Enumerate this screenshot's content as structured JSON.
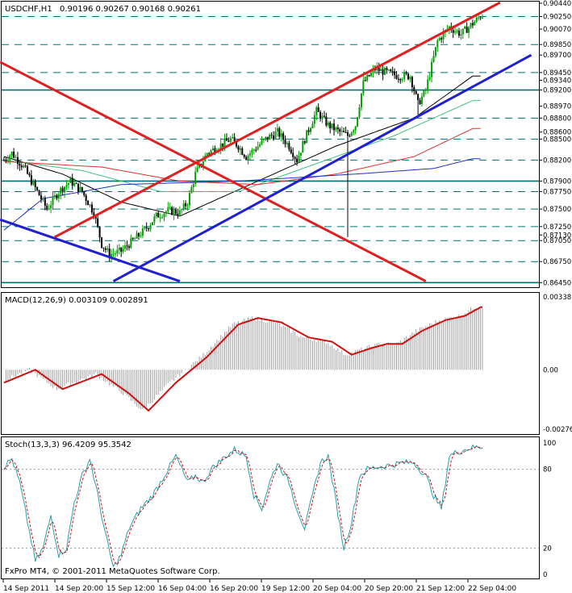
{
  "header": {
    "symbol": "USDCHF,H1",
    "ohlc": "0.90196 0.90267 0.90168 0.90261"
  },
  "colors": {
    "background": "#ffffff",
    "frame": "#000000",
    "bull_candle": "#00a000",
    "bear_candle": "#000000",
    "red_trendline": "#e02020",
    "blue_trendline": "#2020d0",
    "teal_level": "#007070",
    "macd_line": "#d01010",
    "macd_hist": "#a0a0a0",
    "stoch_main": "#20a0b0",
    "stoch_signal": "#d01010"
  },
  "chart_data": [
    {
      "type": "candlestick",
      "title": "USDCHF,H1",
      "subtitle": "0.90196 0.90267 0.90168 0.90261",
      "ylim": [
        0.8643,
        0.9044
      ],
      "price_axis_labels": [
        {
          "label": "0.90440",
          "value": 0.9044
        },
        {
          "label": "0.90250",
          "value": 0.9025
        },
        {
          "label": "0.90070",
          "value": 0.9007
        },
        {
          "label": "0.89850",
          "value": 0.8985
        },
        {
          "label": "0.89700",
          "value": 0.897
        },
        {
          "label": "0.89450",
          "value": 0.8945
        },
        {
          "label": "0.89340",
          "value": 0.8934
        },
        {
          "label": "0.89200",
          "value": 0.892
        },
        {
          "label": "0.88970",
          "value": 0.8897
        },
        {
          "label": "0.88800",
          "value": 0.888
        },
        {
          "label": "0.88600",
          "value": 0.886
        },
        {
          "label": "0.88500",
          "value": 0.885
        },
        {
          "label": "0.88200",
          "value": 0.882
        },
        {
          "label": "0.87900",
          "value": 0.879
        },
        {
          "label": "0.87750",
          "value": 0.8775
        },
        {
          "label": "0.87500",
          "value": 0.875
        },
        {
          "label": "0.87250",
          "value": 0.8725
        },
        {
          "label": "0.87130",
          "value": 0.8713
        },
        {
          "label": "0.87050",
          "value": 0.8705
        },
        {
          "label": "0.86750",
          "value": 0.8675
        },
        {
          "label": "0.86450",
          "value": 0.8645
        }
      ],
      "horizontal_levels": [
        0.9025,
        0.8985,
        0.8945,
        0.892,
        0.888,
        0.885,
        0.882,
        0.879,
        0.8775,
        0.875,
        0.8725,
        0.8705,
        0.8675,
        0.8645
      ],
      "solid_levels": [
        0.892,
        0.879,
        0.8645
      ],
      "time_labels": [
        "14 Sep 2011",
        "14 Sep 20:00",
        "15 Sep 12:00",
        "16 Sep 04:00",
        "16 Sep 20:00",
        "19 Sep 12:00",
        "20 Sep 04:00",
        "20 Sep 20:00",
        "21 Sep 12:00",
        "22 Sep 04:00"
      ],
      "close_keypoints": [
        [
          0,
          0.882
        ],
        [
          4,
          0.883
        ],
        [
          10,
          0.881
        ],
        [
          16,
          0.878
        ],
        [
          22,
          0.875
        ],
        [
          28,
          0.8775
        ],
        [
          34,
          0.879
        ],
        [
          40,
          0.8775
        ],
        [
          46,
          0.8745
        ],
        [
          50,
          0.87
        ],
        [
          54,
          0.8685
        ],
        [
          60,
          0.869
        ],
        [
          66,
          0.8705
        ],
        [
          72,
          0.872
        ],
        [
          78,
          0.874
        ],
        [
          84,
          0.8748
        ],
        [
          90,
          0.8745
        ],
        [
          94,
          0.876
        ],
        [
          98,
          0.88
        ],
        [
          104,
          0.883
        ],
        [
          110,
          0.884
        ],
        [
          116,
          0.885
        ],
        [
          120,
          0.884
        ],
        [
          124,
          0.8825
        ],
        [
          128,
          0.8835
        ],
        [
          134,
          0.885
        ],
        [
          140,
          0.886
        ],
        [
          146,
          0.884
        ],
        [
          150,
          0.882
        ],
        [
          154,
          0.885
        ],
        [
          160,
          0.889
        ],
        [
          166,
          0.887
        ],
        [
          172,
          0.886
        ],
        [
          176,
          0.8855
        ],
        [
          180,
          0.887
        ],
        [
          184,
          0.893
        ],
        [
          190,
          0.895
        ],
        [
          196,
          0.8945
        ],
        [
          202,
          0.894
        ],
        [
          208,
          0.894
        ],
        [
          212,
          0.89
        ],
        [
          216,
          0.892
        ],
        [
          222,
          0.899
        ],
        [
          228,
          0.901
        ],
        [
          234,
          0.9
        ],
        [
          240,
          0.9015
        ],
        [
          244,
          0.9026
        ]
      ],
      "spikes": [
        [
          176,
          0.871
        ],
        [
          212,
          0.8885
        ]
      ],
      "trendlines": [
        {
          "color": "red",
          "points": [
            [
              -2,
              0.896
            ],
            [
              216,
              0.8647
            ]
          ]
        },
        {
          "color": "red",
          "points": [
            [
              26,
              0.871
            ],
            [
              254,
              0.9045
            ]
          ]
        },
        {
          "color": "blue",
          "points": [
            [
              56,
              0.8647
            ],
            [
              270,
              0.897
            ]
          ]
        },
        {
          "color": "blue",
          "points": [
            [
              -2,
              0.8735
            ],
            [
              90,
              0.8647
            ]
          ]
        }
      ],
      "moving_averages": [
        {
          "color": "#000000",
          "points": [
            [
              0,
              0.8825
            ],
            [
              30,
              0.88
            ],
            [
              60,
              0.876
            ],
            [
              90,
              0.874
            ],
            [
              130,
              0.879
            ],
            [
              170,
              0.884
            ],
            [
              210,
              0.888
            ],
            [
              240,
              0.894
            ]
          ]
        },
        {
          "color": "#40c080",
          "points": [
            [
              0,
              0.882
            ],
            [
              40,
              0.8805
            ],
            [
              80,
              0.8775
            ],
            [
              120,
              0.8775
            ],
            [
              160,
              0.8815
            ],
            [
              200,
              0.8855
            ],
            [
              240,
              0.8905
            ]
          ]
        },
        {
          "color": "#e03030",
          "points": [
            [
              0,
              0.8818
            ],
            [
              50,
              0.881
            ],
            [
              90,
              0.879
            ],
            [
              130,
              0.8785
            ],
            [
              170,
              0.88
            ],
            [
              210,
              0.8825
            ],
            [
              240,
              0.8865
            ]
          ]
        },
        {
          "color": "#2030c0",
          "points": [
            [
              0,
              0.872
            ],
            [
              20,
              0.8765
            ],
            [
              60,
              0.8785
            ],
            [
              120,
              0.879
            ],
            [
              180,
              0.88
            ],
            [
              220,
              0.8808
            ],
            [
              240,
              0.8822
            ]
          ]
        }
      ]
    },
    {
      "type": "line",
      "title": "MACD(12,26,9) 0.003109 0.002891",
      "ylim": [
        -0.00276,
        0.00338
      ],
      "axis_labels": [
        {
          "label": "0.00338",
          "value": 0.00338
        },
        {
          "label": "0.00",
          "value": 0.0
        },
        {
          "label": "-0.00276",
          "value": -0.00276
        }
      ],
      "signal_keypoints": [
        [
          0,
          -0.0006
        ],
        [
          16,
          0.0
        ],
        [
          30,
          -0.0009
        ],
        [
          50,
          -0.0002
        ],
        [
          64,
          -0.0011
        ],
        [
          74,
          -0.0019
        ],
        [
          88,
          -0.0006
        ],
        [
          104,
          0.0006
        ],
        [
          120,
          0.0021
        ],
        [
          130,
          0.0024
        ],
        [
          142,
          0.0022
        ],
        [
          156,
          0.0015
        ],
        [
          168,
          0.0013
        ],
        [
          178,
          0.0007
        ],
        [
          188,
          0.001
        ],
        [
          196,
          0.0012
        ],
        [
          204,
          0.0012
        ],
        [
          214,
          0.0018
        ],
        [
          226,
          0.0023
        ],
        [
          236,
          0.0025
        ],
        [
          244,
          0.0029
        ]
      ]
    },
    {
      "type": "line",
      "title": "Stoch(13,3,3) 96.4209 95.3542",
      "ylim": [
        0,
        100
      ],
      "axis_labels": [
        {
          "label": "100",
          "value": 100
        },
        {
          "label": "80",
          "value": 80
        },
        {
          "label": "20",
          "value": 20
        },
        {
          "label": "0",
          "value": 0
        }
      ],
      "main_keypoints": [
        [
          0,
          82
        ],
        [
          4,
          88
        ],
        [
          8,
          70
        ],
        [
          12,
          40
        ],
        [
          16,
          10
        ],
        [
          20,
          20
        ],
        [
          24,
          45
        ],
        [
          28,
          15
        ],
        [
          32,
          20
        ],
        [
          36,
          55
        ],
        [
          40,
          75
        ],
        [
          44,
          88
        ],
        [
          48,
          60
        ],
        [
          52,
          30
        ],
        [
          56,
          5
        ],
        [
          60,
          15
        ],
        [
          64,
          35
        ],
        [
          70,
          50
        ],
        [
          76,
          60
        ],
        [
          82,
          75
        ],
        [
          88,
          90
        ],
        [
          94,
          70
        ],
        [
          98,
          75
        ],
        [
          102,
          70
        ],
        [
          106,
          80
        ],
        [
          112,
          88
        ],
        [
          118,
          95
        ],
        [
          124,
          90
        ],
        [
          128,
          60
        ],
        [
          132,
          50
        ],
        [
          136,
          70
        ],
        [
          140,
          85
        ],
        [
          146,
          70
        ],
        [
          150,
          50
        ],
        [
          154,
          35
        ],
        [
          158,
          60
        ],
        [
          162,
          85
        ],
        [
          166,
          90
        ],
        [
          170,
          55
        ],
        [
          174,
          20
        ],
        [
          178,
          40
        ],
        [
          182,
          75
        ],
        [
          186,
          80
        ],
        [
          192,
          82
        ],
        [
          198,
          83
        ],
        [
          204,
          85
        ],
        [
          210,
          85
        ],
        [
          216,
          75
        ],
        [
          220,
          60
        ],
        [
          224,
          50
        ],
        [
          228,
          90
        ],
        [
          232,
          93
        ],
        [
          238,
          96
        ],
        [
          244,
          97
        ]
      ]
    }
  ],
  "footer": {
    "copyright": "FxPro MT4, © 2001-2011 MetaQuotes Software Corp."
  }
}
